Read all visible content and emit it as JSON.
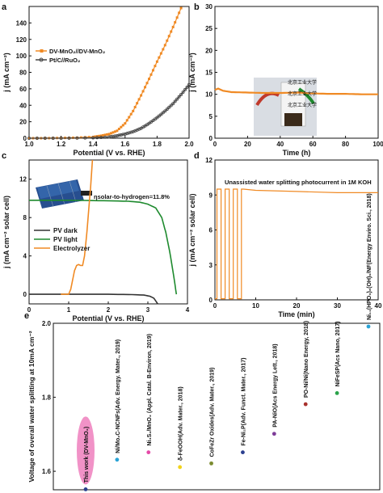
{
  "chart_data": [
    {
      "panel": "a",
      "type": "line",
      "xlabel": "Potential (V vs. RHE)",
      "ylabel": "j (mA cm⁻²)",
      "xlim": [
        1.0,
        2.0
      ],
      "ylim": [
        0,
        160
      ],
      "xticks": [
        "1.0",
        "1.2",
        "1.4",
        "1.6",
        "1.8",
        "2.0"
      ],
      "yticks": [
        "0",
        "20",
        "40",
        "60",
        "80",
        "100",
        "120",
        "140"
      ],
      "legend": "top-left",
      "series": [
        {
          "name": "DV-MnO₂//DV-MnO₂",
          "color": "#f08a24",
          "x": [
            1.0,
            1.1,
            1.2,
            1.3,
            1.4,
            1.45,
            1.5,
            1.55,
            1.6,
            1.65,
            1.7,
            1.75,
            1.8,
            1.85,
            1.9,
            1.95
          ],
          "y": [
            0,
            0,
            0.3,
            0.6,
            1.5,
            3,
            5,
            9,
            18,
            33,
            52,
            72,
            93,
            113,
            135,
            158
          ]
        },
        {
          "name": "Pt/C//RuO₂",
          "color": "#444444",
          "x": [
            1.0,
            1.2,
            1.4,
            1.5,
            1.55,
            1.6,
            1.65,
            1.7,
            1.75,
            1.8,
            1.85,
            1.9,
            1.95,
            2.0
          ],
          "y": [
            0,
            0,
            0.5,
            1.5,
            3,
            5,
            8,
            12,
            18,
            25,
            33,
            42,
            53,
            65
          ]
        }
      ]
    },
    {
      "panel": "b",
      "type": "line",
      "xlabel": "Time (h)",
      "ylabel": "j (mA cm⁻²)",
      "xlim": [
        0,
        100
      ],
      "ylim": [
        0,
        30
      ],
      "xticks": [
        "0",
        "20",
        "40",
        "60",
        "80",
        "100"
      ],
      "yticks": [
        "0",
        "5",
        "10",
        "15",
        "20",
        "25",
        "30"
      ],
      "series": [
        {
          "name": "",
          "color": "#f08a24",
          "x": [
            0,
            2,
            5,
            10,
            20,
            30,
            40,
            50,
            60,
            70,
            80,
            90,
            100
          ],
          "y": [
            11,
            11.3,
            10.8,
            10.5,
            10.4,
            10.3,
            10.3,
            10.4,
            10.2,
            10.1,
            10.1,
            10.0,
            10.0
          ]
        }
      ],
      "photo_labels": [
        "北京工业大学",
        "北京工业大学",
        "北京工业大学"
      ]
    },
    {
      "panel": "c",
      "type": "line",
      "xlabel": "Potential (V vs. RHE)",
      "ylabel": "j (mA cm⁻² solar cell)",
      "xlim": [
        0,
        4
      ],
      "ylim": [
        -1,
        14
      ],
      "xticks": [
        "0",
        "1",
        "2",
        "3",
        "4"
      ],
      "yticks": [
        "0",
        "4",
        "8",
        "12"
      ],
      "legend": "left",
      "annotation": "ηsolar-to-hydrogen=11.8%",
      "series": [
        {
          "name": "PV dark",
          "color": "#333333",
          "x": [
            0,
            1,
            2,
            2.5,
            2.9,
            3.05,
            3.15,
            3.2,
            3.25
          ],
          "y": [
            0,
            0,
            0,
            -0.02,
            -0.08,
            -0.2,
            -0.4,
            -0.7,
            -1.0
          ]
        },
        {
          "name": "PV light",
          "color": "#1e8a2e",
          "x": [
            0,
            0.5,
            1,
            1.5,
            2,
            2.5,
            2.8,
            3.0,
            3.2,
            3.35,
            3.45,
            3.55,
            3.65,
            3.72
          ],
          "y": [
            9.8,
            9.8,
            9.8,
            9.78,
            9.75,
            9.7,
            9.6,
            9.4,
            9.0,
            8.0,
            6.5,
            4.5,
            2.0,
            0
          ]
        },
        {
          "name": "Electrolyzer",
          "color": "#f08a24",
          "x": [
            0.8,
            1.0,
            1.05,
            1.1,
            1.15,
            1.2,
            1.25,
            1.3,
            1.35,
            1.4,
            1.45,
            1.5,
            1.55,
            1.6
          ],
          "y": [
            0,
            0,
            0.5,
            1.5,
            2.5,
            3,
            3.1,
            3,
            3,
            4,
            6,
            8.5,
            11,
            14
          ]
        }
      ]
    },
    {
      "panel": "d",
      "type": "line",
      "title": "Unassisted water splitting photocurrent in 1M KOH",
      "xlabel": "Time (min)",
      "ylabel": "j (mA cm⁻² solar cell)",
      "xlim": [
        0,
        40
      ],
      "ylim": [
        0,
        12
      ],
      "xticks": [
        "0",
        "10",
        "20",
        "30",
        "40"
      ],
      "yticks": [
        "0",
        "3",
        "6",
        "9",
        "12"
      ],
      "series": [
        {
          "name": "",
          "color": "#f08a24",
          "description_x_switch": [
            0.5,
            1.5,
            2.5,
            3.5,
            4.5,
            5.5,
            6.5
          ],
          "on_value": 9.5,
          "off_value": 0.1,
          "steady_x": [
            7,
            10,
            20,
            30,
            40
          ],
          "steady_y": [
            9.5,
            9.4,
            9.3,
            9.2,
            9.2
          ]
        }
      ]
    },
    {
      "panel": "e",
      "type": "scatter",
      "ylabel": "Voltage of overall water splitting at 10mA cm⁻²",
      "ylim": [
        1.55,
        2.0
      ],
      "yticks": [
        "1.6",
        "1.8",
        "2.0"
      ],
      "points": [
        {
          "label": "This work (DV-MnO₂)",
          "y": 1.56,
          "color": "#2b3f8f"
        },
        {
          "label": "Ni/Mo₂C-NCNFs(Adv. Energy. Mater., 2019)",
          "y": 1.64,
          "color": "#29a3d6"
        },
        {
          "label": "Ni₃S₂/MnO₂ (Appl. Catal. B-Environ, 2019)",
          "y": 1.66,
          "color": "#e54aa8"
        },
        {
          "label": "δ-FeOOH(Adv. Mater., 2018)",
          "y": 1.62,
          "color": "#f2d31b"
        },
        {
          "label": "CoFeZr Oxides(Adv. Mater., 2019)",
          "y": 1.63,
          "color": "#7b8b2f"
        },
        {
          "label": "Fe-Ni₂P(Adv. Funct. Mater., 2017)",
          "y": 1.66,
          "color": "#2b3f8f"
        },
        {
          "label": "PA-NiO(Acs Energy Lett., 2018)",
          "y": 1.71,
          "color": "#7d3c98"
        },
        {
          "label": "PO-Ni/Ni(Nano Energy, 2018)",
          "y": 1.79,
          "color": "#a8322d"
        },
        {
          "label": "NiFeSP(Acs Nano, 2017)",
          "y": 1.82,
          "color": "#2aa34a"
        },
        {
          "label": "Ni₁₁(HPO₃)₈(OH)₆/NF(Energy Enviro. Sci., 2018)",
          "y": 2.0,
          "color": "#29a3d6"
        }
      ]
    }
  ],
  "panels": {
    "a": {
      "letter": "a"
    },
    "b": {
      "letter": "b"
    },
    "c": {
      "letter": "c"
    },
    "d": {
      "letter": "d"
    },
    "e": {
      "letter": "e"
    }
  },
  "colors": {
    "orange": "#f08a24",
    "green": "#1e8a2e",
    "gray": "#444444",
    "pink": "#ee7fbd"
  }
}
